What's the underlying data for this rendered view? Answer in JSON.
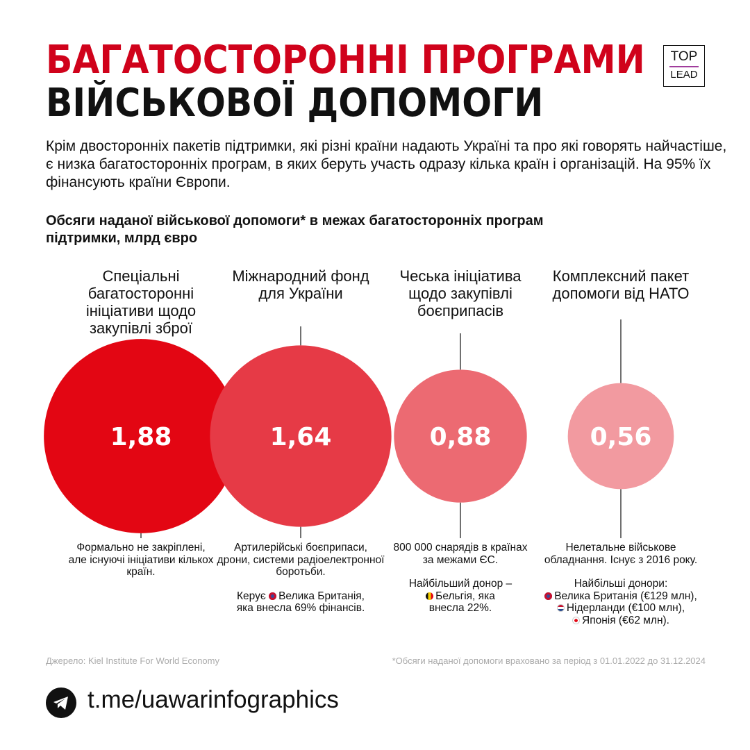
{
  "header": {
    "title_line1": "БАГАТОСТОРОННІ ПРОГРАМИ",
    "title_line2": "ВІЙСЬКОВОЇ ДОПОМОГИ",
    "logo_top": "TOP",
    "logo_bottom": "LEAD"
  },
  "intro": "Крім двосторонніх пакетів підтримки, які різні країни надають Україні та про які говорять найчастіше, є низка багатосторонніх програм, в яких беруть участь одразу кілька країн і організацій. На 95% їх фінансують країни Європи.",
  "chart_data": {
    "type": "bubble",
    "title": "Обсяги наданої військової допомоги* в межах багатосторонніх програм підтримки, млрд євро",
    "categories": [
      "Спеціальні багатосторонні ініціативи щодо закупівлі зброї",
      "Міжнародний фонд для України",
      "Чеська ініціатива щодо закупівлі боєприпасів",
      "Комплексний пакет допомоги від НАТО"
    ],
    "values": [
      1.88,
      1.64,
      0.88,
      0.56
    ],
    "labels": [
      "1,88",
      "1,64",
      "0,88",
      "0,56"
    ],
    "colors": [
      "#e30613",
      "#e63a46",
      "#ec6a72",
      "#f29aa0"
    ]
  },
  "notes": [
    {
      "p": [
        "Формально не закріплені, але існуючі ініціативи кількох країн."
      ]
    },
    {
      "p": [
        "Артилерійські боєприпаси, дрони, системи радіоелектронної боротьби."
      ],
      "flag_pre": "Керує",
      "flag": "Велика Британія,",
      "flag_post": "яка внесла 69% фінансів."
    },
    {
      "p": [
        "800 000 снарядів в країнах за межами ЄС."
      ],
      "flag_pre": "Найбільший донор –",
      "flag": "Бельгія, яка",
      "flag_post": "внесла 22%."
    },
    {
      "p": [
        "Нелетальне військове обладнання. Існує з 2016 року."
      ],
      "donors_title": "Найбільші донори:",
      "donors": [
        "Велика Британія (€129 млн),",
        "Нідерланди (€100 млн),",
        "Японія (€62 млн)."
      ]
    }
  ],
  "footer": {
    "source": "Джерело: Kiel Institute For World Economy",
    "footnote": "*Обсяги наданої допомоги враховано за період з 01.01.2022 до 31.12.2024",
    "link": "t.me/uawarinfographics"
  }
}
